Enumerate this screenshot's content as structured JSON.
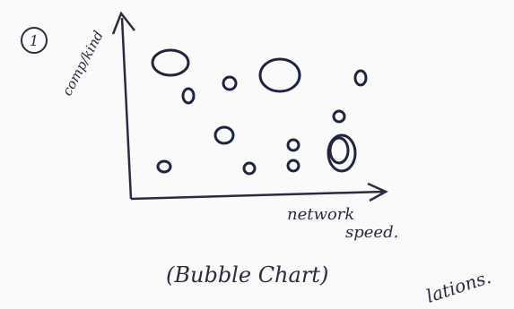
{
  "label": "1",
  "y_axis_label": "comp/kind",
  "x_axis_label": [
    "network",
    "speed."
  ],
  "caption": "(Bubble Chart)",
  "note": "lations."
}
